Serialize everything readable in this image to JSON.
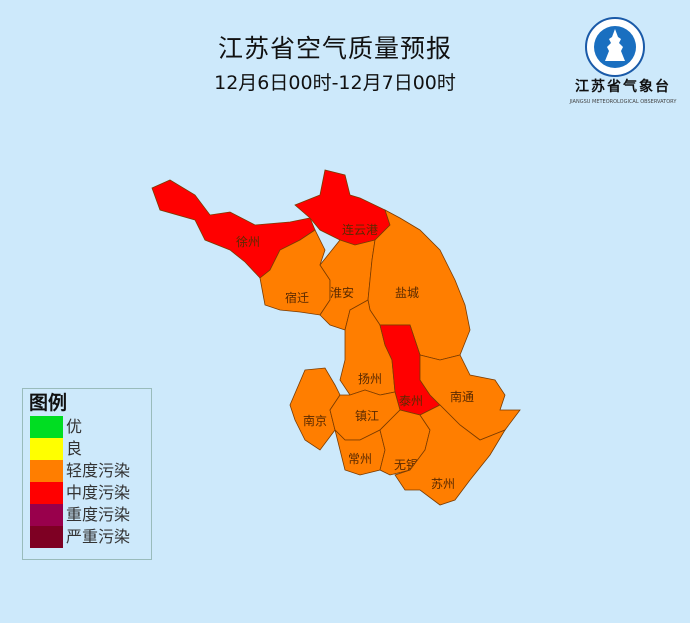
{
  "header": {
    "title": "江苏省空气质量预报",
    "subtitle": "12月6日00时-12月7日00时"
  },
  "logo": {
    "name": "江苏省气象台",
    "english": "JIANGSU METEOROLOGICAL OBSERVATORY"
  },
  "legend": {
    "title": "图例",
    "items": [
      {
        "label": "优",
        "color": "#00dd22"
      },
      {
        "label": "良",
        "color": "#ffff00"
      },
      {
        "label": "轻度污染",
        "color": "#ff7e00"
      },
      {
        "label": "中度污染",
        "color": "#ff0000"
      },
      {
        "label": "重度污染",
        "color": "#99004c"
      },
      {
        "label": "严重污染",
        "color": "#7e0023"
      }
    ]
  },
  "cities": [
    {
      "name": "徐州",
      "level": "中度污染"
    },
    {
      "name": "连云港",
      "level": "中度污染"
    },
    {
      "name": "宿迁",
      "level": "轻度污染"
    },
    {
      "name": "淮安",
      "level": "轻度污染"
    },
    {
      "name": "盐城",
      "level": "轻度污染"
    },
    {
      "name": "扬州",
      "level": "轻度污染"
    },
    {
      "name": "泰州",
      "level": "中度污染"
    },
    {
      "name": "南通",
      "level": "轻度污染"
    },
    {
      "name": "南京",
      "level": "轻度污染"
    },
    {
      "name": "镇江",
      "level": "轻度污染"
    },
    {
      "name": "常州",
      "level": "轻度污染"
    },
    {
      "name": "无锡",
      "level": "轻度污染"
    },
    {
      "name": "苏州",
      "level": "轻度污染"
    }
  ]
}
